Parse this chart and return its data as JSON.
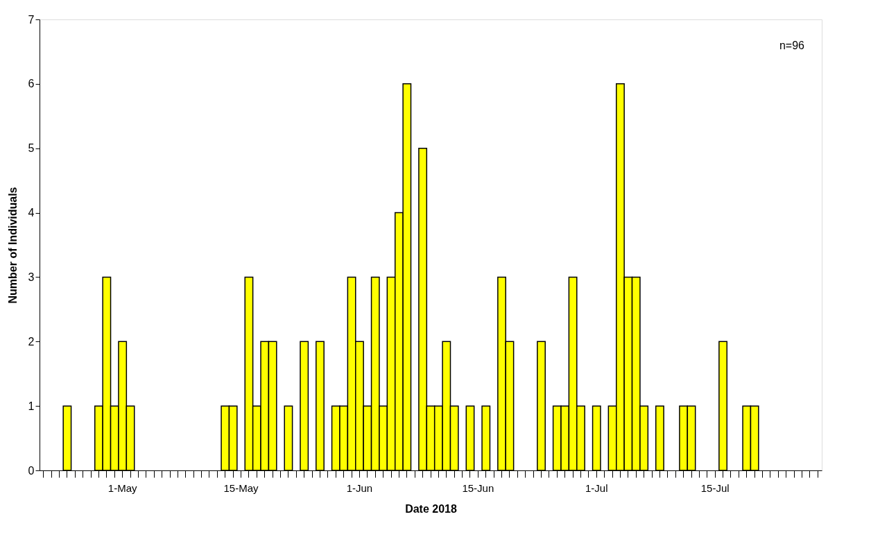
{
  "chart_data": {
    "type": "bar",
    "xlabel": "Date 2018",
    "ylabel": "Number of Individuals",
    "categories": [
      null,
      null,
      null,
      null,
      null,
      null,
      null,
      null,
      null,
      null,
      "1-May",
      null,
      null,
      null,
      null,
      null,
      null,
      null,
      null,
      null,
      null,
      null,
      null,
      null,
      null,
      "15-May",
      null,
      null,
      null,
      null,
      null,
      null,
      null,
      null,
      null,
      null,
      null,
      null,
      null,
      null,
      "1-Jun",
      null,
      null,
      null,
      null,
      null,
      null,
      null,
      null,
      null,
      null,
      null,
      null,
      null,
      null,
      "15-Jun",
      null,
      null,
      null,
      null,
      null,
      null,
      null,
      null,
      null,
      null,
      null,
      null,
      null,
      null,
      "1-Jul",
      null,
      null,
      null,
      null,
      null,
      null,
      null,
      null,
      null,
      null,
      null,
      null,
      null,
      null,
      "15-Jul",
      null,
      null,
      null,
      null,
      null,
      null,
      null,
      null,
      null,
      null,
      null,
      null,
      null
    ],
    "series": [
      {
        "color": "#ffff00",
        "values": [
          null,
          null,
          null,
          1,
          null,
          null,
          null,
          1,
          3,
          1,
          2,
          1,
          null,
          null,
          null,
          null,
          null,
          null,
          null,
          null,
          null,
          null,
          null,
          1,
          1,
          null,
          3,
          1,
          2,
          2,
          null,
          1,
          null,
          2,
          null,
          2,
          null,
          1,
          1,
          3,
          2,
          1,
          3,
          1,
          3,
          4,
          6,
          null,
          5,
          1,
          1,
          2,
          1,
          null,
          1,
          null,
          1,
          null,
          3,
          2,
          null,
          null,
          null,
          2,
          null,
          1,
          1,
          3,
          1,
          null,
          1,
          null,
          1,
          6,
          3,
          3,
          1,
          null,
          1,
          null,
          null,
          1,
          1,
          null,
          null,
          null,
          2,
          null,
          null,
          1,
          1,
          null,
          null,
          null,
          null,
          null,
          null,
          null,
          null
        ]
      }
    ],
    "ylim": [
      0,
      7
    ],
    "yticks": [
      0,
      1,
      2,
      3,
      4,
      5,
      6,
      7
    ],
    "annotations": [
      "n=96"
    ],
    "grid": false
  }
}
